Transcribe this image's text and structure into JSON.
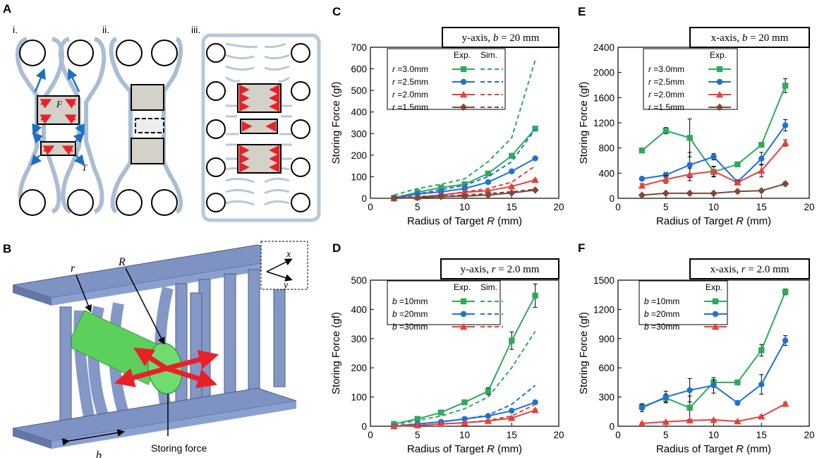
{
  "panels": {
    "A": "A",
    "B": "B",
    "C": "C",
    "D": "D",
    "E": "E",
    "F": "F"
  },
  "diagram_a": {
    "sublabels": [
      "i.",
      "ii.",
      "iii."
    ],
    "force_label": "F",
    "tension_label": "T"
  },
  "diagram_b": {
    "label_r": "r",
    "label_R": "R",
    "label_b": "b",
    "axis_x": "x",
    "axis_y": "y",
    "storing_force": "Storing force"
  },
  "colors": {
    "green": "#2eaa5c",
    "blue": "#1f6fd6",
    "red": "#e8403c",
    "brown": "#7a4a3c",
    "rod": "#7e93c4",
    "target": "#5ccf5c",
    "arrow_red": "#e8202a",
    "arrow_blue": "#1d6fbf"
  },
  "chart_data": [
    {
      "id": "C",
      "type": "line",
      "title": "y-axis, b = 20 mm",
      "xlabel": "Radius of Target R (mm)",
      "ylabel": "Storing Force (gf)",
      "xlim": [
        0,
        20
      ],
      "ylim": [
        0,
        700
      ],
      "xticks": [
        0,
        5,
        10,
        15,
        20
      ],
      "yticks": [
        0,
        100,
        200,
        300,
        400,
        500,
        600,
        700
      ],
      "legend_headers": [
        "Exp.",
        "Sim."
      ],
      "x": [
        2.5,
        5,
        7.5,
        10,
        12.5,
        15,
        17.5
      ],
      "series": [
        {
          "name": "r =3.0mm",
          "color": "green",
          "marker": "square",
          "exp": [
            2,
            28,
            50,
            65,
            115,
            197,
            323
          ],
          "err": [
            3,
            4,
            4,
            4,
            6,
            6,
            8
          ],
          "sim_x": [
            2.5,
            5,
            7.5,
            10,
            12.5,
            15,
            17.5
          ],
          "sim": [
            15,
            45,
            65,
            90,
            170,
            280,
            640
          ]
        },
        {
          "name": "r =2.5mm",
          "color": "blue",
          "marker": "circle",
          "exp": [
            0,
            20,
            30,
            45,
            75,
            125,
            185
          ],
          "err": [
            2,
            3,
            3,
            3,
            4,
            5,
            6
          ],
          "sim_x": [
            2.5,
            5,
            7.5,
            10,
            12.5,
            15,
            17.5
          ],
          "sim": [
            5,
            20,
            40,
            60,
            100,
            170,
            320
          ]
        },
        {
          "name": "r =2.0mm",
          "color": "red",
          "marker": "triangle",
          "exp": [
            0,
            5,
            15,
            28,
            35,
            55,
            85
          ],
          "err": [
            2,
            2,
            3,
            3,
            3,
            4,
            5
          ],
          "sim_x": [
            2.5,
            5,
            7.5,
            10,
            12.5,
            15,
            17.5
          ],
          "sim": [
            2,
            8,
            15,
            30,
            45,
            75,
            150
          ]
        },
        {
          "name": "r =1.5mm",
          "color": "brown",
          "marker": "diamond",
          "exp": [
            0,
            3,
            8,
            10,
            15,
            25,
            38
          ],
          "err": [
            1,
            2,
            2,
            2,
            2,
            3,
            4
          ],
          "sim_x": [
            2.5,
            5,
            7.5,
            10,
            12.5,
            15,
            17.5
          ],
          "sim": [
            2,
            5,
            10,
            15,
            22,
            30,
            42
          ]
        }
      ]
    },
    {
      "id": "D",
      "type": "line",
      "title": "y-axis, r = 2.0 mm",
      "xlabel": "Radius of Target R (mm)",
      "ylabel": "Storing Force (gf)",
      "xlim": [
        0,
        20
      ],
      "ylim": [
        0,
        500
      ],
      "xticks": [
        0,
        5,
        10,
        15,
        20
      ],
      "yticks": [
        0,
        100,
        200,
        300,
        400,
        500
      ],
      "legend_headers": [
        "Exp.",
        "Sim."
      ],
      "x": [
        2.5,
        5,
        7.5,
        10,
        12.5,
        15,
        17.5
      ],
      "series": [
        {
          "name": "b =10mm",
          "color": "green",
          "marker": "square",
          "exp": [
            8,
            25,
            47,
            82,
            120,
            293,
            447
          ],
          "err": [
            3,
            4,
            5,
            8,
            12,
            30,
            40
          ],
          "sim_x": [
            2.5,
            5,
            7.5,
            10,
            12.5,
            15,
            17.5
          ],
          "sim": [
            5,
            20,
            35,
            60,
            100,
            200,
            325
          ]
        },
        {
          "name": "b =20mm",
          "color": "blue",
          "marker": "circle",
          "exp": [
            0,
            8,
            15,
            25,
            35,
            53,
            82
          ],
          "err": [
            2,
            3,
            3,
            3,
            4,
            4,
            6
          ],
          "sim_x": [
            2.5,
            5,
            7.5,
            10,
            12.5,
            15,
            17.5
          ],
          "sim": [
            2,
            8,
            15,
            25,
            38,
            75,
            140
          ]
        },
        {
          "name": "b =30mm",
          "color": "red",
          "marker": "triangle",
          "exp": [
            0,
            3,
            8,
            12,
            18,
            28,
            55
          ],
          "err": [
            1,
            2,
            2,
            2,
            3,
            3,
            4
          ],
          "sim_x": [
            2.5,
            5,
            7.5,
            10,
            12.5,
            15,
            17.5
          ],
          "sim": [
            0,
            3,
            7,
            12,
            20,
            35,
            75
          ]
        }
      ]
    },
    {
      "id": "E",
      "type": "line",
      "title": "x-axis, b = 20 mm",
      "xlabel": "Radius of Target R (mm)",
      "ylabel": "Storing Force (gf)",
      "xlim": [
        0,
        20
      ],
      "ylim": [
        0,
        2400
      ],
      "xticks": [
        0,
        5,
        10,
        15,
        20
      ],
      "yticks": [
        0,
        400,
        800,
        1200,
        1600,
        2000,
        2400
      ],
      "legend_headers": [
        "Exp."
      ],
      "x": [
        2.5,
        5,
        7.5,
        10,
        12.5,
        15,
        17.5
      ],
      "series": [
        {
          "name": "r =3.0mm",
          "color": "green",
          "marker": "square",
          "exp": [
            760,
            1075,
            960,
            420,
            540,
            850,
            1790
          ],
          "err": [
            30,
            50,
            300,
            80,
            30,
            30,
            110
          ]
        },
        {
          "name": "r =2.5mm",
          "color": "blue",
          "marker": "circle",
          "exp": [
            310,
            370,
            530,
            660,
            260,
            630,
            1160
          ],
          "err": [
            30,
            40,
            200,
            50,
            30,
            100,
            90
          ]
        },
        {
          "name": "r =2.0mm",
          "color": "red",
          "marker": "triangle",
          "exp": [
            200,
            300,
            380,
            430,
            250,
            440,
            880
          ],
          "err": [
            30,
            60,
            100,
            80,
            30,
            100,
            50
          ]
        },
        {
          "name": "r =1.5mm",
          "color": "brown",
          "marker": "diamond",
          "exp": [
            50,
            80,
            80,
            80,
            110,
            120,
            230
          ],
          "err": [
            10,
            10,
            10,
            10,
            15,
            15,
            30
          ]
        }
      ]
    },
    {
      "id": "F",
      "type": "line",
      "title": "x-axis, r = 2.0 mm",
      "xlabel": "Radius of Target R (mm)",
      "ylabel": "Storing Force (gf)",
      "xlim": [
        0,
        20
      ],
      "ylim": [
        0,
        1500
      ],
      "xticks": [
        0,
        5,
        10,
        15,
        20
      ],
      "yticks": [
        0,
        300,
        600,
        900,
        1200,
        1500
      ],
      "legend_headers": [
        "Exp."
      ],
      "x": [
        2.5,
        5,
        7.5,
        10,
        12.5,
        15,
        17.5
      ],
      "series": [
        {
          "name": "b =10mm",
          "color": "green",
          "marker": "square",
          "exp": [
            200,
            290,
            190,
            450,
            450,
            780,
            1380
          ],
          "err": [
            30,
            40,
            120,
            30,
            20,
            60,
            30
          ]
        },
        {
          "name": "b =20mm",
          "color": "blue",
          "marker": "circle",
          "exp": [
            190,
            300,
            370,
            420,
            240,
            430,
            880
          ],
          "err": [
            40,
            60,
            120,
            80,
            20,
            100,
            50
          ]
        },
        {
          "name": "b =30mm",
          "color": "red",
          "marker": "triangle",
          "exp": [
            30,
            45,
            60,
            65,
            50,
            100,
            230
          ],
          "err": [
            5,
            5,
            5,
            5,
            5,
            10,
            15
          ]
        }
      ]
    }
  ]
}
